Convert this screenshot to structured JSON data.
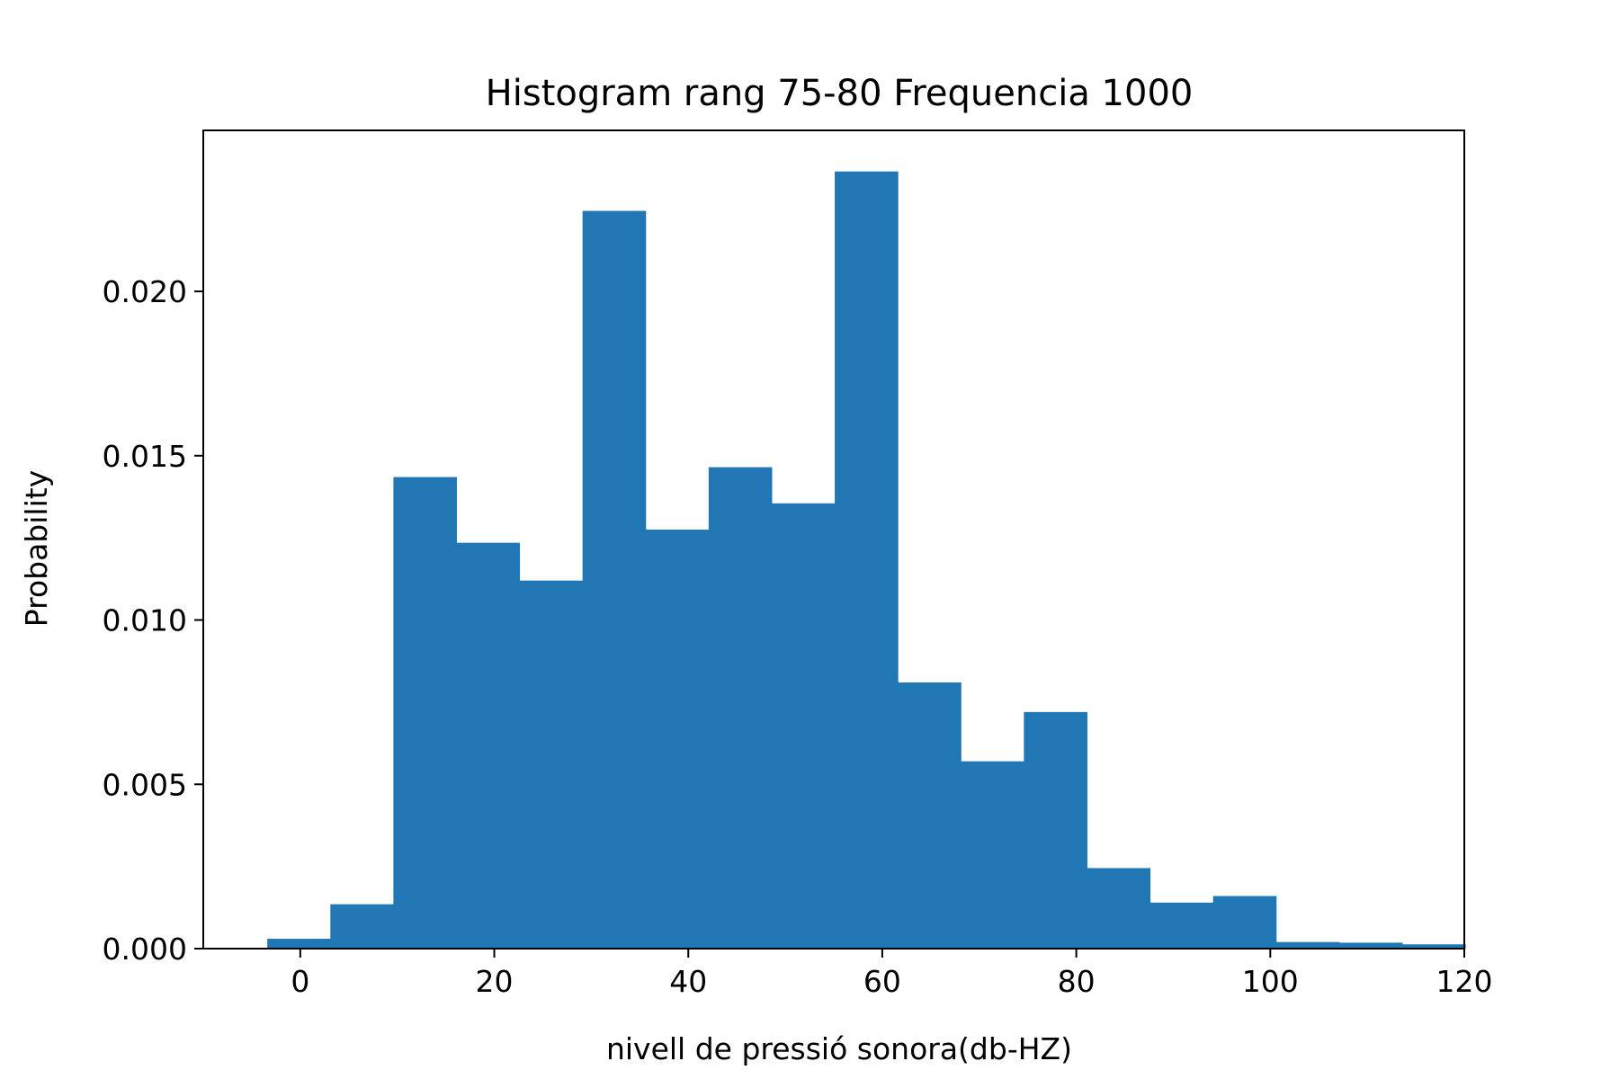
{
  "chart_data": {
    "type": "bar",
    "title": "Histogram rang 75-80 Frequencia 1000",
    "xlabel": "nivell de pressió sonora(db-HZ)",
    "ylabel": "Probability",
    "xlim": [
      -10,
      120
    ],
    "ylim": [
      0,
      0.0249
    ],
    "grid": false,
    "color": "#2077b4",
    "xticks": [
      0,
      20,
      40,
      60,
      80,
      100,
      120
    ],
    "xtick_labels": [
      "0",
      "20",
      "40",
      "60",
      "80",
      "100",
      "120"
    ],
    "yticks": [
      0,
      0.005,
      0.01,
      0.015,
      0.02
    ],
    "ytick_labels": [
      "0.000",
      "0.005",
      "0.010",
      "0.015",
      "0.020"
    ],
    "bin_edges": [
      -3.4,
      3.1,
      9.6,
      16.1,
      22.6,
      29.1,
      35.6,
      42.1,
      48.6,
      55.1,
      61.6,
      68.1,
      74.6,
      81.1,
      87.6,
      94.1,
      100.6,
      107.1,
      113.6,
      120.1
    ],
    "values": [
      0.0003,
      0.00135,
      0.01435,
      0.01235,
      0.0112,
      0.02245,
      0.01275,
      0.01465,
      0.01355,
      0.02365,
      0.0081,
      0.0057,
      0.0072,
      0.00245,
      0.0014,
      0.0016,
      0.0002,
      0.00018,
      0.00013
    ]
  }
}
